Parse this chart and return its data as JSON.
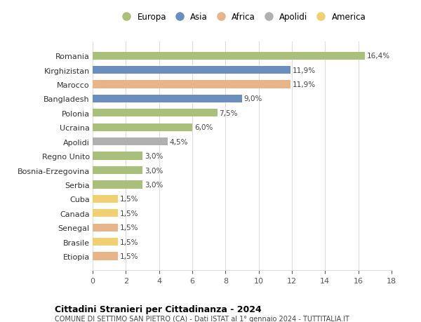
{
  "categories": [
    "Romania",
    "Kirghizistan",
    "Marocco",
    "Bangladesh",
    "Polonia",
    "Ucraina",
    "Apolidi",
    "Regno Unito",
    "Bosnia-Erzegovina",
    "Serbia",
    "Cuba",
    "Canada",
    "Senegal",
    "Brasile",
    "Etiopia"
  ],
  "values": [
    16.4,
    11.9,
    11.9,
    9.0,
    7.5,
    6.0,
    4.5,
    3.0,
    3.0,
    3.0,
    1.5,
    1.5,
    1.5,
    1.5,
    1.5
  ],
  "labels": [
    "16,4%",
    "11,9%",
    "11,9%",
    "9,0%",
    "7,5%",
    "6,0%",
    "4,5%",
    "3,0%",
    "3,0%",
    "3,0%",
    "1,5%",
    "1,5%",
    "1,5%",
    "1,5%",
    "1,5%"
  ],
  "colors": [
    "#a8c07a",
    "#6a8fbe",
    "#e8b48a",
    "#6a8fbe",
    "#a8c07a",
    "#a8c07a",
    "#b0b0b0",
    "#a8c07a",
    "#a8c07a",
    "#a8c07a",
    "#f0d070",
    "#f0d070",
    "#e8b48a",
    "#f0d070",
    "#e8b48a"
  ],
  "legend_labels": [
    "Europa",
    "Asia",
    "Africa",
    "Apolidi",
    "America"
  ],
  "legend_colors": [
    "#a8c07a",
    "#6a8fbe",
    "#e8b48a",
    "#b0b0b0",
    "#f0d070"
  ],
  "title": "Cittadini Stranieri per Cittadinanza - 2024",
  "subtitle": "COMUNE DI SETTIMO SAN PIETRO (CA) - Dati ISTAT al 1° gennaio 2024 - TUTTITALIA.IT",
  "xlim": [
    0,
    18
  ],
  "xticks": [
    0,
    2,
    4,
    6,
    8,
    10,
    12,
    14,
    16,
    18
  ],
  "background_color": "#ffffff",
  "grid_color": "#dddddd"
}
